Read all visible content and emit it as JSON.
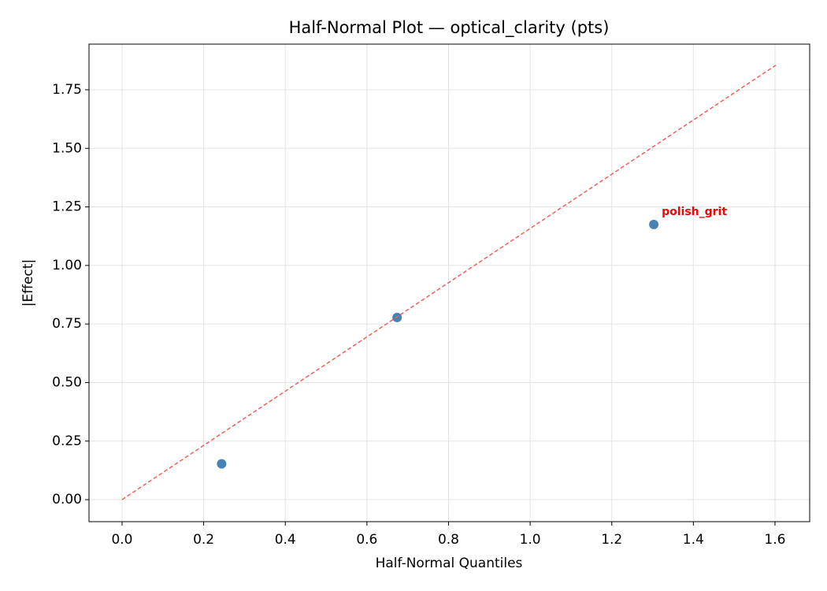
{
  "chart_data": {
    "type": "scatter",
    "title": "Half-Normal Plot — optical_clarity (pts)",
    "x_label": "Half-Normal Quantiles",
    "y_label": "|Effect|",
    "series": [
      {
        "x": [
          0.244,
          0.674,
          1.303
        ],
        "values": [
          0.153,
          0.778,
          1.175
        ],
        "color": "#4682b4",
        "style": "points"
      },
      {
        "x": [
          0,
          1.602
        ],
        "values": [
          0,
          1.855
        ],
        "color": "#f0605a",
        "style": "dashed-line"
      }
    ],
    "annotations": [
      {
        "text": "polish_grit",
        "x": 1.303,
        "y": 1.175,
        "color": "#ff0000"
      }
    ],
    "xlim": [
      -0.081,
      1.685
    ],
    "ylim": [
      -0.094,
      1.945
    ],
    "xticks": [
      {
        "value": 0,
        "label": "0.0"
      },
      0.2,
      0.4,
      0.6,
      0.8,
      {
        "value": 1,
        "label": "1.0"
      },
      1.2,
      1.4,
      1.6
    ],
    "yticks": [
      {
        "value": 0,
        "label": "0.00"
      },
      0.25,
      {
        "value": 0.5,
        "label": "0.50"
      },
      0.75,
      {
        "value": 1,
        "label": "1.00"
      },
      1.25,
      {
        "value": 1.5,
        "label": "1.50"
      },
      1.75
    ],
    "grid": true
  }
}
